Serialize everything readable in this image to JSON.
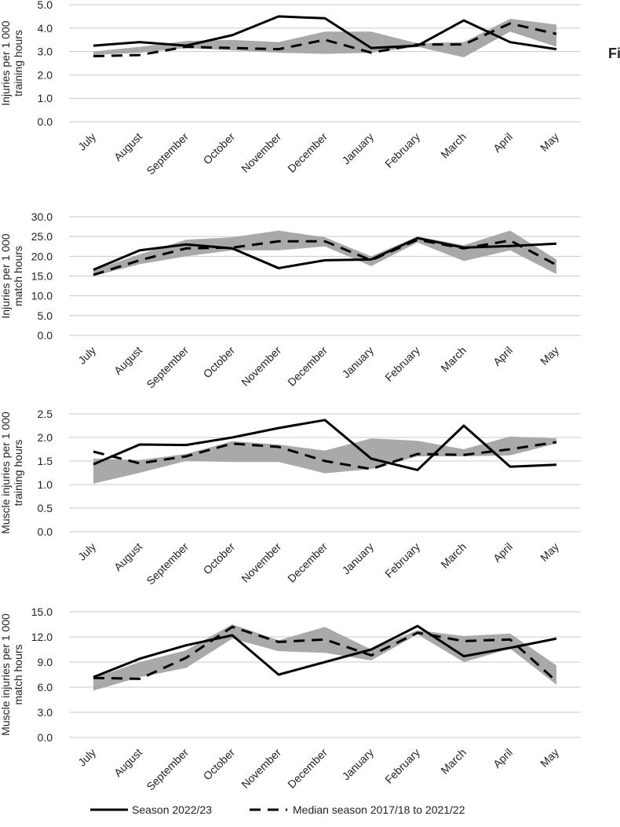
{
  "figure_label": "Fi",
  "months": [
    "July",
    "August",
    "September",
    "October",
    "November",
    "December",
    "January",
    "February",
    "March",
    "April",
    "May"
  ],
  "legend": {
    "season_label": "Season 2022/23",
    "median_label": "Median season 2017/18 to 2021/22"
  },
  "colors": {
    "line": "#000000",
    "band": "#a9a9a9",
    "grid": "#c8c8c8",
    "text": "#222222"
  },
  "chart_data": [
    {
      "type": "line",
      "ylabel_lines": [
        "Injuries per 1 000",
        "training hours"
      ],
      "ylim": [
        0,
        5
      ],
      "ticks": [
        "0.0",
        "1.0",
        "2.0",
        "3.0",
        "4.0",
        "5.0"
      ],
      "tick_values": [
        0,
        1,
        2,
        3,
        4,
        5
      ],
      "series": [
        {
          "name": "Season 2022/23",
          "values": [
            3.25,
            3.4,
            3.25,
            3.7,
            4.5,
            4.42,
            3.15,
            3.25,
            4.33,
            3.4,
            3.1
          ]
        },
        {
          "name": "Median season 2017/18 to 2021/22",
          "values": [
            2.8,
            2.85,
            3.2,
            3.15,
            3.1,
            3.5,
            2.95,
            3.3,
            3.3,
            4.2,
            3.75
          ]
        }
      ],
      "band": {
        "lower": [
          2.85,
          2.95,
          3.15,
          3.05,
          2.95,
          2.9,
          2.95,
          3.2,
          2.75,
          3.85,
          3.2
        ],
        "upper": [
          3.0,
          3.2,
          3.45,
          3.5,
          3.4,
          3.85,
          3.85,
          3.35,
          3.4,
          4.4,
          4.15
        ]
      }
    },
    {
      "type": "line",
      "ylabel_lines": [
        "Injuries per 1 000",
        "match hours"
      ],
      "ylim": [
        0,
        30
      ],
      "ticks": [
        "0.0",
        "5.0",
        "10.0",
        "15.0",
        "20.0",
        "25.0",
        "30.0"
      ],
      "tick_values": [
        0,
        5,
        10,
        15,
        20,
        25,
        30
      ],
      "series": [
        {
          "name": "Season 2022/23",
          "values": [
            16.6,
            21.5,
            23.0,
            22.0,
            17.0,
            19.0,
            19.2,
            24.6,
            22.2,
            22.6,
            23.2
          ]
        },
        {
          "name": "Median season 2017/18 to 2021/22",
          "values": [
            15.3,
            19.0,
            22.0,
            22.2,
            23.8,
            23.8,
            19.0,
            24.2,
            22.0,
            24.0,
            17.8
          ]
        }
      ],
      "band": {
        "lower": [
          15.0,
          18.0,
          20.0,
          21.5,
          21.5,
          22.5,
          17.5,
          23.5,
          18.8,
          21.5,
          15.5
        ],
        "upper": [
          16.5,
          20.5,
          24.2,
          24.8,
          26.5,
          24.8,
          20.0,
          25.0,
          22.8,
          26.5,
          19.2
        ]
      }
    },
    {
      "type": "line",
      "ylabel_lines": [
        "Muscle injuries per 1 000",
        "training hours"
      ],
      "ylim": [
        0,
        2.5
      ],
      "ticks": [
        "0.0",
        "0.5",
        "1.0",
        "1.5",
        "2.0",
        "2.5"
      ],
      "tick_values": [
        0,
        0.5,
        1,
        1.5,
        2,
        2.5
      ],
      "series": [
        {
          "name": "Season 2022/23",
          "values": [
            1.43,
            1.85,
            1.84,
            2.0,
            2.2,
            2.37,
            1.55,
            1.31,
            2.25,
            1.38,
            1.42
          ]
        },
        {
          "name": "Median season 2017/18 to 2021/22",
          "values": [
            1.7,
            1.45,
            1.6,
            1.87,
            1.8,
            1.5,
            1.33,
            1.65,
            1.63,
            1.75,
            1.9
          ]
        }
      ],
      "band": {
        "lower": [
          1.02,
          1.25,
          1.5,
          1.48,
          1.48,
          1.24,
          1.33,
          1.6,
          1.6,
          1.62,
          1.87
        ],
        "upper": [
          1.55,
          1.52,
          1.65,
          1.92,
          1.85,
          1.72,
          1.98,
          1.93,
          1.75,
          2.02,
          1.98
        ]
      }
    },
    {
      "type": "line",
      "ylabel_lines": [
        "Muscle injuries per 1 000",
        "match hours"
      ],
      "ylim": [
        0,
        15
      ],
      "ticks": [
        "0.0",
        "3.0",
        "6.0",
        "9.0",
        "12.0",
        "15.0"
      ],
      "tick_values": [
        0,
        3,
        6,
        9,
        12,
        15
      ],
      "series": [
        {
          "name": "Season 2022/23",
          "values": [
            7.2,
            9.4,
            11.0,
            12.2,
            7.5,
            9.0,
            10.5,
            13.3,
            9.7,
            10.7,
            11.8
          ]
        },
        {
          "name": "Median season 2017/18 to 2021/22",
          "values": [
            7.1,
            7.0,
            9.5,
            13.2,
            11.4,
            11.7,
            9.8,
            12.5,
            11.5,
            11.7,
            6.7
          ]
        }
      ],
      "band": {
        "lower": [
          5.6,
          7.2,
          8.3,
          11.8,
          10.3,
          10.1,
          9.2,
          12.3,
          9.0,
          10.6,
          6.3
        ],
        "upper": [
          7.1,
          9.0,
          10.4,
          13.5,
          11.6,
          13.2,
          10.5,
          12.8,
          12.1,
          12.4,
          8.6
        ]
      }
    }
  ]
}
